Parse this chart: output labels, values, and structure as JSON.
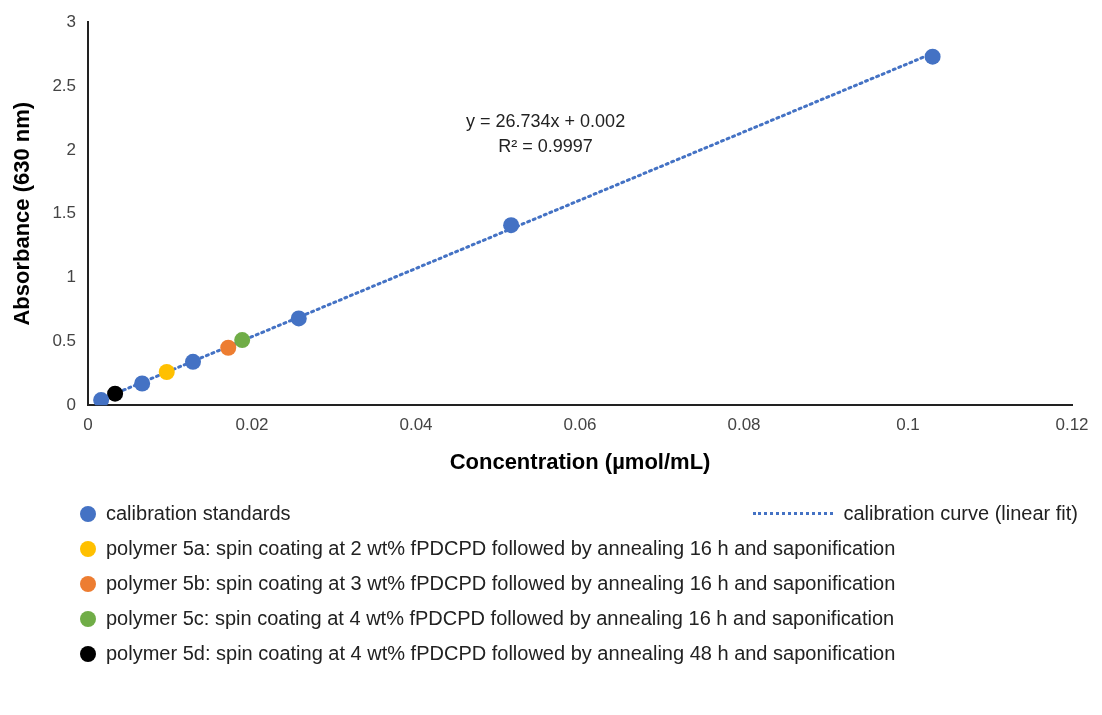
{
  "chart_data": {
    "type": "scatter",
    "xlabel": "Concentration (µmol/mL)",
    "ylabel": "Absorbance (630 nm)",
    "xlim": [
      0,
      0.12
    ],
    "xticks": [
      0,
      0.02,
      0.04,
      0.06,
      0.08,
      0.1,
      0.12
    ],
    "ylim": [
      0,
      3
    ],
    "yticks": [
      0,
      0.5,
      1,
      1.5,
      2,
      2.5,
      3
    ],
    "grid": false,
    "legend": "bottom",
    "marker": "circle",
    "annotations": [
      "y = 26.734x + 0.002",
      "R² = 0.9997"
    ],
    "series": [
      {
        "name": "calibration standards",
        "type": "scatter",
        "color": "#4472c4",
        "x": [
          0.0016,
          0.0066,
          0.0128,
          0.0257,
          0.0516,
          0.103
        ],
        "values": [
          0.04,
          0.17,
          0.34,
          0.68,
          1.41,
          2.73
        ]
      },
      {
        "name": "calibration curve (linear fit)",
        "type": "line",
        "color": "#4472c4",
        "line_style": "dotted",
        "marker": "none",
        "x": [
          0.0016,
          0.103
        ],
        "values": [
          0.045,
          2.756
        ]
      },
      {
        "name": "polymer 5a: spin coating at 2 wt% fPDCPD followed by annealing 16 h and saponification",
        "type": "scatter",
        "color": "#ffc000",
        "x": [
          0.0096
        ],
        "values": [
          0.26
        ]
      },
      {
        "name": "polymer 5b: spin coating at 3 wt% fPDCPD followed by annealing 16 h and saponification",
        "type": "scatter",
        "color": "#ed7d31",
        "x": [
          0.0171
        ],
        "values": [
          0.45
        ]
      },
      {
        "name": "polymer 5c: spin coating at 4 wt% fPDCPD followed by annealing 16 h and saponification",
        "type": "scatter",
        "color": "#70ad47",
        "x": [
          0.0188
        ],
        "values": [
          0.51
        ]
      },
      {
        "name": "polymer 5d: spin coating at 4 wt% fPDCPD followed by annealing 48 h and saponification",
        "type": "scatter",
        "color": "#000000",
        "x": [
          0.0033
        ],
        "values": [
          0.09
        ]
      }
    ]
  }
}
